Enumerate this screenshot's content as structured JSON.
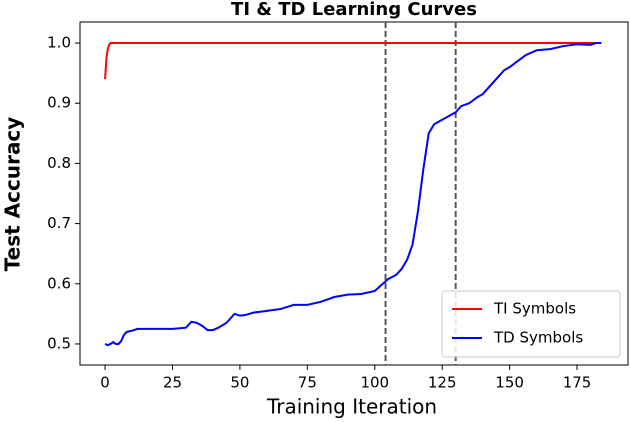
{
  "chart_data": {
    "type": "line",
    "title": "TI & TD Learning Curves",
    "x_label": "Training Iteration",
    "y_label": "Test Accuracy",
    "xlim": [
      -9.3,
      193.9
    ],
    "ylim": [
      0.465,
      1.035
    ],
    "xticks": [
      0,
      25,
      50,
      75,
      100,
      125,
      150,
      175
    ],
    "yticks": [
      0.5,
      0.6,
      0.7,
      0.8,
      0.9,
      {
        "value": 1,
        "label": "1.0"
      }
    ],
    "vlines": [
      104,
      130
    ],
    "legend": "lower right",
    "series": [
      {
        "name": "TI Symbols",
        "color": "#ff0000",
        "x": [
          0,
          0.5,
          1,
          1.5,
          2,
          3,
          184
        ],
        "values": [
          0.94,
          0.975,
          0.99,
          0.997,
          1,
          1,
          1
        ]
      },
      {
        "name": "TD Symbols",
        "color": "#0000ff",
        "x": [
          0,
          1,
          2,
          3,
          4,
          5,
          6,
          7,
          8,
          10,
          12,
          15,
          20,
          25,
          30,
          32,
          34,
          36,
          38,
          40,
          42,
          45,
          48,
          50,
          52,
          55,
          60,
          65,
          70,
          75,
          80,
          85,
          90,
          95,
          100,
          103,
          105,
          108,
          110,
          112,
          114,
          116,
          118,
          120,
          122,
          124,
          126,
          128,
          130,
          132,
          135,
          138,
          140,
          143,
          146,
          148,
          150,
          153,
          156,
          160,
          165,
          170,
          175,
          180,
          182,
          184
        ],
        "values": [
          0.5,
          0.498,
          0.5,
          0.503,
          0.5,
          0.5,
          0.505,
          0.515,
          0.52,
          0.522,
          0.525,
          0.525,
          0.525,
          0.525,
          0.527,
          0.537,
          0.535,
          0.53,
          0.523,
          0.523,
          0.527,
          0.535,
          0.55,
          0.547,
          0.548,
          0.552,
          0.555,
          0.558,
          0.565,
          0.565,
          0.57,
          0.578,
          0.582,
          0.583,
          0.588,
          0.6,
          0.608,
          0.615,
          0.625,
          0.64,
          0.665,
          0.72,
          0.79,
          0.85,
          0.865,
          0.87,
          0.875,
          0.88,
          0.885,
          0.895,
          0.9,
          0.91,
          0.915,
          0.93,
          0.945,
          0.955,
          0.96,
          0.97,
          0.98,
          0.988,
          0.99,
          0.995,
          0.998,
          0.997,
          1,
          1
        ]
      }
    ]
  }
}
